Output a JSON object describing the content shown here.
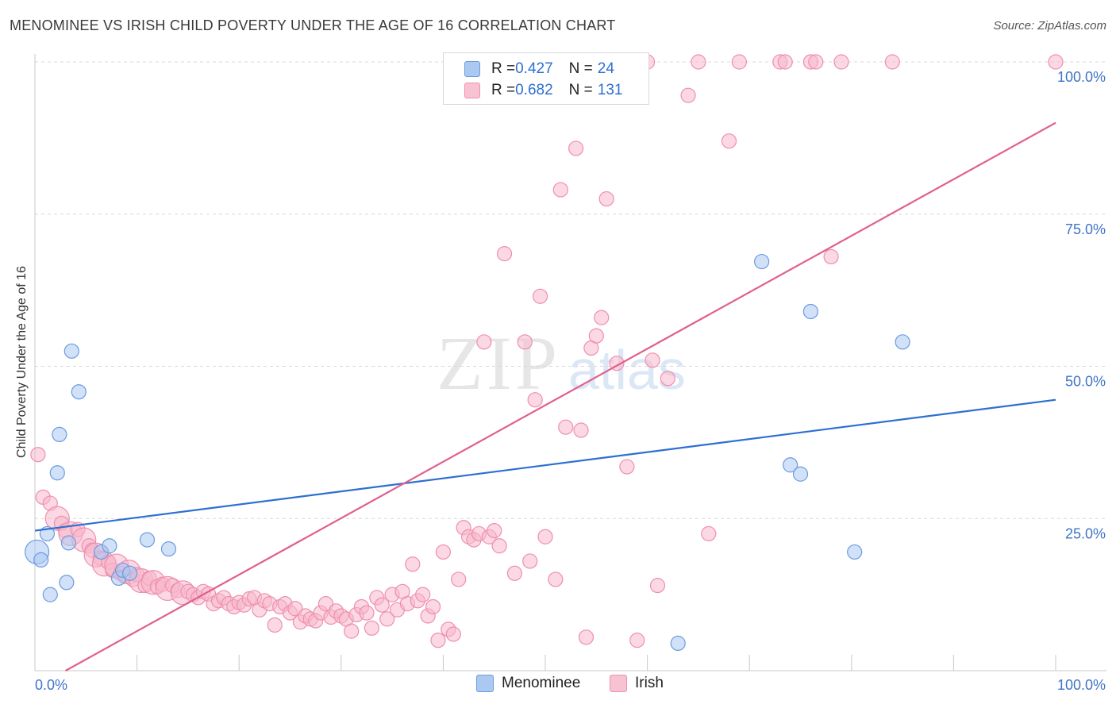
{
  "title": "MENOMINEE VS IRISH CHILD POVERTY UNDER THE AGE OF 16 CORRELATION CHART",
  "source": "Source: ZipAtlas.com",
  "watermark": {
    "zip": "ZIP",
    "atlas": "atlas"
  },
  "legend_top": {
    "rows": [
      {
        "r_label": "R = ",
        "r_value": "0.427",
        "n_label": "N = ",
        "n_value": "24"
      },
      {
        "r_label": "R = ",
        "r_value": "0.682",
        "n_label": "N = ",
        "n_value": "131"
      }
    ]
  },
  "legend_bottom": {
    "items": [
      "Menominee",
      "Irish"
    ]
  },
  "chart_data": {
    "type": "scatter",
    "title": "MENOMINEE VS IRISH CHILD POVERTY UNDER THE AGE OF 16 CORRELATION CHART",
    "xlabel": "",
    "ylabel": "Child Poverty Under the Age of 16",
    "xlim": [
      0,
      100
    ],
    "ylim": [
      0,
      100
    ],
    "x_tick_labels": [
      "0.0%",
      "100.0%"
    ],
    "y_ticks": [
      25,
      50,
      75,
      100
    ],
    "y_tick_labels": [
      "25.0%",
      "50.0%",
      "75.0%",
      "100.0%"
    ],
    "grid": true,
    "legend_position": "bottom",
    "colors": {
      "menominee_fill": "#a9c8f2",
      "menominee_stroke": "#6d9be0",
      "menominee_line": "#2d6fd2",
      "irish_fill": "#f7b8cc",
      "irish_stroke": "#ee8fae",
      "irish_line": "#e0608d",
      "tick_label": "#3f74c9",
      "grid": "#d8d8d8"
    },
    "series": [
      {
        "name": "Menominee",
        "trend": {
          "x": [
            0,
            100
          ],
          "y": [
            23.0,
            44.5
          ]
        },
        "points": [
          {
            "x": 0.2,
            "y": 19.5,
            "s": "l"
          },
          {
            "x": 0.6,
            "y": 18.2,
            "s": "m"
          },
          {
            "x": 1.2,
            "y": 22.5,
            "s": "m"
          },
          {
            "x": 1.5,
            "y": 12.5,
            "s": "m"
          },
          {
            "x": 2.2,
            "y": 32.5,
            "s": "m"
          },
          {
            "x": 2.4,
            "y": 38.8,
            "s": "m"
          },
          {
            "x": 3.1,
            "y": 14.5,
            "s": "m"
          },
          {
            "x": 3.3,
            "y": 21.0,
            "s": "m"
          },
          {
            "x": 3.6,
            "y": 52.5,
            "s": "m"
          },
          {
            "x": 4.3,
            "y": 45.8,
            "s": "m"
          },
          {
            "x": 6.5,
            "y": 19.5,
            "s": "m"
          },
          {
            "x": 7.3,
            "y": 20.5,
            "s": "m"
          },
          {
            "x": 8.2,
            "y": 15.2,
            "s": "m"
          },
          {
            "x": 8.6,
            "y": 16.5,
            "s": "m"
          },
          {
            "x": 9.3,
            "y": 16.0,
            "s": "m"
          },
          {
            "x": 11.0,
            "y": 21.5,
            "s": "m"
          },
          {
            "x": 13.1,
            "y": 20.0,
            "s": "m"
          },
          {
            "x": 63.0,
            "y": 4.5,
            "s": "m"
          },
          {
            "x": 71.2,
            "y": 67.2,
            "s": "m"
          },
          {
            "x": 74.0,
            "y": 33.8,
            "s": "m"
          },
          {
            "x": 75.0,
            "y": 32.3,
            "s": "m"
          },
          {
            "x": 76.0,
            "y": 59.0,
            "s": "m"
          },
          {
            "x": 80.3,
            "y": 19.5,
            "s": "m"
          },
          {
            "x": 85.0,
            "y": 54.0,
            "s": "m"
          }
        ]
      },
      {
        "name": "Irish",
        "trend": {
          "x": [
            3,
            100
          ],
          "y": [
            0,
            90.0
          ]
        },
        "points": [
          {
            "x": 0.3,
            "y": 35.5,
            "s": "m"
          },
          {
            "x": 0.8,
            "y": 28.5,
            "s": "m"
          },
          {
            "x": 1.5,
            "y": 27.5,
            "s": "m"
          },
          {
            "x": 2.2,
            "y": 25.0,
            "s": "l"
          },
          {
            "x": 2.6,
            "y": 24.2,
            "s": "m"
          },
          {
            "x": 3.0,
            "y": 23.0,
            "s": "m"
          },
          {
            "x": 3.5,
            "y": 22.5,
            "s": "l"
          },
          {
            "x": 4.2,
            "y": 23.2,
            "s": "m"
          },
          {
            "x": 4.8,
            "y": 21.5,
            "s": "l"
          },
          {
            "x": 5.3,
            "y": 20.5,
            "s": "m"
          },
          {
            "x": 5.6,
            "y": 19.8,
            "s": "m"
          },
          {
            "x": 6.0,
            "y": 19.0,
            "s": "l"
          },
          {
            "x": 6.4,
            "y": 18.5,
            "s": "m"
          },
          {
            "x": 6.8,
            "y": 17.5,
            "s": "l"
          },
          {
            "x": 7.2,
            "y": 17.8,
            "s": "m"
          },
          {
            "x": 7.6,
            "y": 16.5,
            "s": "m"
          },
          {
            "x": 8.0,
            "y": 17.2,
            "s": "l"
          },
          {
            "x": 8.4,
            "y": 16.0,
            "s": "m"
          },
          {
            "x": 8.8,
            "y": 15.5,
            "s": "m"
          },
          {
            "x": 9.2,
            "y": 16.2,
            "s": "l"
          },
          {
            "x": 9.6,
            "y": 15.0,
            "s": "m"
          },
          {
            "x": 10.0,
            "y": 15.8,
            "s": "m"
          },
          {
            "x": 10.4,
            "y": 14.8,
            "s": "l"
          },
          {
            "x": 10.8,
            "y": 14.0,
            "s": "m"
          },
          {
            "x": 11.2,
            "y": 15.2,
            "s": "m"
          },
          {
            "x": 11.6,
            "y": 14.5,
            "s": "l"
          },
          {
            "x": 12.0,
            "y": 13.8,
            "s": "m"
          },
          {
            "x": 12.5,
            "y": 14.2,
            "s": "m"
          },
          {
            "x": 13.0,
            "y": 13.5,
            "s": "l"
          },
          {
            "x": 13.5,
            "y": 14.0,
            "s": "m"
          },
          {
            "x": 14.0,
            "y": 13.2,
            "s": "m"
          },
          {
            "x": 14.5,
            "y": 12.8,
            "s": "l"
          },
          {
            "x": 15.0,
            "y": 13.0,
            "s": "m"
          },
          {
            "x": 15.5,
            "y": 12.5,
            "s": "m"
          },
          {
            "x": 16.0,
            "y": 12.0,
            "s": "m"
          },
          {
            "x": 16.5,
            "y": 13.0,
            "s": "m"
          },
          {
            "x": 17.0,
            "y": 12.6,
            "s": "m"
          },
          {
            "x": 17.5,
            "y": 11.0,
            "s": "m"
          },
          {
            "x": 18.0,
            "y": 11.5,
            "s": "m"
          },
          {
            "x": 18.5,
            "y": 12.0,
            "s": "m"
          },
          {
            "x": 19.0,
            "y": 11.0,
            "s": "m"
          },
          {
            "x": 19.5,
            "y": 10.5,
            "s": "m"
          },
          {
            "x": 20.0,
            "y": 11.2,
            "s": "m"
          },
          {
            "x": 20.5,
            "y": 10.8,
            "s": "m"
          },
          {
            "x": 21.0,
            "y": 11.8,
            "s": "m"
          },
          {
            "x": 21.5,
            "y": 12.0,
            "s": "m"
          },
          {
            "x": 22.0,
            "y": 10.0,
            "s": "m"
          },
          {
            "x": 22.5,
            "y": 11.5,
            "s": "m"
          },
          {
            "x": 23.0,
            "y": 11.0,
            "s": "m"
          },
          {
            "x": 23.5,
            "y": 7.5,
            "s": "m"
          },
          {
            "x": 24.0,
            "y": 10.5,
            "s": "m"
          },
          {
            "x": 24.5,
            "y": 11.0,
            "s": "m"
          },
          {
            "x": 25.0,
            "y": 9.5,
            "s": "m"
          },
          {
            "x": 25.5,
            "y": 10.2,
            "s": "m"
          },
          {
            "x": 26.0,
            "y": 8.0,
            "s": "m"
          },
          {
            "x": 26.5,
            "y": 9.0,
            "s": "m"
          },
          {
            "x": 27.0,
            "y": 8.5,
            "s": "m"
          },
          {
            "x": 27.5,
            "y": 8.2,
            "s": "m"
          },
          {
            "x": 28.0,
            "y": 9.5,
            "s": "m"
          },
          {
            "x": 28.5,
            "y": 11.0,
            "s": "m"
          },
          {
            "x": 29.0,
            "y": 8.8,
            "s": "m"
          },
          {
            "x": 29.5,
            "y": 9.8,
            "s": "m"
          },
          {
            "x": 30.0,
            "y": 9.0,
            "s": "m"
          },
          {
            "x": 30.5,
            "y": 8.5,
            "s": "m"
          },
          {
            "x": 31.0,
            "y": 6.5,
            "s": "m"
          },
          {
            "x": 31.5,
            "y": 9.2,
            "s": "m"
          },
          {
            "x": 32.0,
            "y": 10.5,
            "s": "m"
          },
          {
            "x": 32.5,
            "y": 9.5,
            "s": "m"
          },
          {
            "x": 33.0,
            "y": 7.0,
            "s": "m"
          },
          {
            "x": 33.5,
            "y": 12.0,
            "s": "m"
          },
          {
            "x": 34.0,
            "y": 10.8,
            "s": "m"
          },
          {
            "x": 34.5,
            "y": 8.5,
            "s": "m"
          },
          {
            "x": 35.0,
            "y": 12.5,
            "s": "m"
          },
          {
            "x": 35.5,
            "y": 10.0,
            "s": "m"
          },
          {
            "x": 36.0,
            "y": 13.0,
            "s": "m"
          },
          {
            "x": 36.5,
            "y": 11.0,
            "s": "m"
          },
          {
            "x": 37.0,
            "y": 17.5,
            "s": "m"
          },
          {
            "x": 37.5,
            "y": 11.5,
            "s": "m"
          },
          {
            "x": 38.0,
            "y": 12.5,
            "s": "m"
          },
          {
            "x": 38.5,
            "y": 9.0,
            "s": "m"
          },
          {
            "x": 39.0,
            "y": 10.5,
            "s": "m"
          },
          {
            "x": 39.5,
            "y": 5.0,
            "s": "m"
          },
          {
            "x": 40.0,
            "y": 19.5,
            "s": "m"
          },
          {
            "x": 40.5,
            "y": 6.8,
            "s": "m"
          },
          {
            "x": 41.0,
            "y": 6.0,
            "s": "m"
          },
          {
            "x": 41.5,
            "y": 15.0,
            "s": "m"
          },
          {
            "x": 42.0,
            "y": 23.5,
            "s": "m"
          },
          {
            "x": 42.5,
            "y": 22.0,
            "s": "m"
          },
          {
            "x": 43.0,
            "y": 21.5,
            "s": "m"
          },
          {
            "x": 43.5,
            "y": 22.5,
            "s": "m"
          },
          {
            "x": 44.0,
            "y": 54.0,
            "s": "m"
          },
          {
            "x": 44.5,
            "y": 22.0,
            "s": "m"
          },
          {
            "x": 45.0,
            "y": 23.0,
            "s": "m"
          },
          {
            "x": 45.5,
            "y": 20.5,
            "s": "m"
          },
          {
            "x": 46.0,
            "y": 68.5,
            "s": "m"
          },
          {
            "x": 47.0,
            "y": 16.0,
            "s": "m"
          },
          {
            "x": 48.0,
            "y": 54.0,
            "s": "m"
          },
          {
            "x": 48.5,
            "y": 18.0,
            "s": "m"
          },
          {
            "x": 49.0,
            "y": 44.5,
            "s": "m"
          },
          {
            "x": 49.5,
            "y": 61.5,
            "s": "m"
          },
          {
            "x": 50.0,
            "y": 22.0,
            "s": "m"
          },
          {
            "x": 51.0,
            "y": 15.0,
            "s": "m"
          },
          {
            "x": 51.5,
            "y": 79.0,
            "s": "m"
          },
          {
            "x": 52.0,
            "y": 40.0,
            "s": "m"
          },
          {
            "x": 53.0,
            "y": 85.8,
            "s": "m"
          },
          {
            "x": 53.5,
            "y": 39.5,
            "s": "m"
          },
          {
            "x": 54.0,
            "y": 5.5,
            "s": "m"
          },
          {
            "x": 54.5,
            "y": 53.0,
            "s": "m"
          },
          {
            "x": 55.0,
            "y": 55.0,
            "s": "m"
          },
          {
            "x": 55.5,
            "y": 58.0,
            "s": "m"
          },
          {
            "x": 56.0,
            "y": 77.5,
            "s": "m"
          },
          {
            "x": 57.0,
            "y": 50.5,
            "s": "m"
          },
          {
            "x": 58.0,
            "y": 33.5,
            "s": "m"
          },
          {
            "x": 59.0,
            "y": 5.0,
            "s": "m"
          },
          {
            "x": 60.0,
            "y": 100.0,
            "s": "m"
          },
          {
            "x": 60.5,
            "y": 51.0,
            "s": "m"
          },
          {
            "x": 61.0,
            "y": 14.0,
            "s": "m"
          },
          {
            "x": 62.0,
            "y": 48.0,
            "s": "m"
          },
          {
            "x": 64.0,
            "y": 94.5,
            "s": "m"
          },
          {
            "x": 65.0,
            "y": 100.0,
            "s": "m"
          },
          {
            "x": 66.0,
            "y": 22.5,
            "s": "m"
          },
          {
            "x": 68.0,
            "y": 87.0,
            "s": "m"
          },
          {
            "x": 69.0,
            "y": 100.0,
            "s": "m"
          },
          {
            "x": 73.0,
            "y": 100.0,
            "s": "m"
          },
          {
            "x": 73.5,
            "y": 100.0,
            "s": "m"
          },
          {
            "x": 76.0,
            "y": 100.0,
            "s": "m"
          },
          {
            "x": 76.5,
            "y": 100.0,
            "s": "m"
          },
          {
            "x": 78.0,
            "y": 68.0,
            "s": "m"
          },
          {
            "x": 79.0,
            "y": 100.0,
            "s": "m"
          },
          {
            "x": 84.0,
            "y": 100.0,
            "s": "m"
          },
          {
            "x": 100.0,
            "y": 100.0,
            "s": "m"
          }
        ]
      }
    ]
  }
}
